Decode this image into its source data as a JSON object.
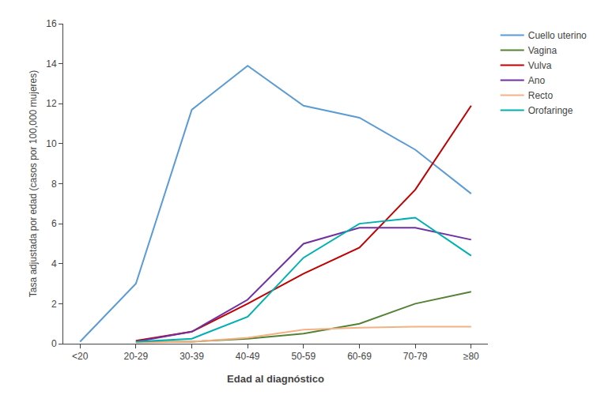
{
  "chart_data": {
    "type": "line",
    "categories": [
      "<20",
      "20-29",
      "30-39",
      "40-49",
      "50-59",
      "60-69",
      "70-79",
      "≥80"
    ],
    "series": [
      {
        "name": "Cuello uterino",
        "color": "#5B9BD5",
        "values": [
          0.1,
          3.0,
          11.7,
          13.9,
          11.9,
          11.3,
          9.7,
          7.5
        ]
      },
      {
        "name": "Vagina",
        "color": "#548235",
        "values": [
          null,
          0.1,
          0.1,
          0.25,
          0.5,
          1.0,
          2.0,
          2.6
        ]
      },
      {
        "name": "Vulva",
        "color": "#C00000",
        "values": [
          null,
          0.15,
          0.6,
          2.0,
          3.5,
          4.8,
          7.7,
          11.9
        ]
      },
      {
        "name": "Ano",
        "color": "#7030A0",
        "values": [
          null,
          0.1,
          0.6,
          2.2,
          5.0,
          5.8,
          5.8,
          5.2
        ]
      },
      {
        "name": "Recto",
        "color": "#F4B183",
        "values": [
          null,
          0.05,
          0.1,
          0.3,
          0.7,
          0.8,
          0.85,
          0.85
        ]
      },
      {
        "name": "Orofaringe",
        "color": "#00B0B0",
        "values": [
          null,
          0.1,
          0.25,
          1.35,
          4.3,
          6.0,
          6.3,
          4.4
        ]
      }
    ],
    "xlabel": "Edad al diagnóstico",
    "ylabel": "Tasa adjustada por edad (casos por 100,000 mujeres)",
    "ylim": [
      0,
      16
    ],
    "yticks": [
      0,
      2,
      4,
      6,
      8,
      10,
      12,
      14,
      16
    ],
    "grid": false,
    "legend": "upper right"
  }
}
